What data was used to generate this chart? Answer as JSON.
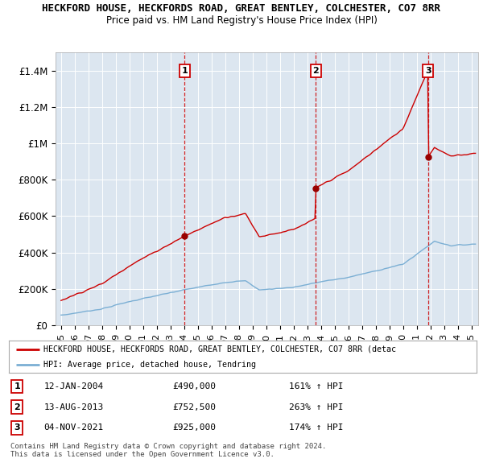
{
  "title": "HECKFORD HOUSE, HECKFORDS ROAD, GREAT BENTLEY, COLCHESTER, CO7 8RR",
  "subtitle": "Price paid vs. HM Land Registry's House Price Index (HPI)",
  "ylim": [
    0,
    1500000
  ],
  "yticks": [
    0,
    200000,
    400000,
    600000,
    800000,
    1000000,
    1200000,
    1400000
  ],
  "ytick_labels": [
    "£0",
    "£200K",
    "£400K",
    "£600K",
    "£800K",
    "£1M",
    "£1.2M",
    "£1.4M"
  ],
  "background_color": "#ffffff",
  "plot_bg_color": "#dce6f0",
  "grid_color": "#ffffff",
  "sale_year_nums": [
    2004.04,
    2013.62,
    2021.84
  ],
  "sale_prices": [
    490000,
    752500,
    925000
  ],
  "sale_labels": [
    "1",
    "2",
    "3"
  ],
  "sale_info": [
    {
      "label": "1",
      "date": "12-JAN-2004",
      "price": "£490,000",
      "hpi": "161% ↑ HPI"
    },
    {
      "label": "2",
      "date": "13-AUG-2013",
      "price": "£752,500",
      "hpi": "263% ↑ HPI"
    },
    {
      "label": "3",
      "date": "04-NOV-2021",
      "price": "£925,000",
      "hpi": "174% ↑ HPI"
    }
  ],
  "red_color": "#cc0000",
  "blue_color": "#7bafd4",
  "dashed_color": "#cc0000",
  "legend_red_label": "HECKFORD HOUSE, HECKFORDS ROAD, GREAT BENTLEY, COLCHESTER, CO7 8RR (detac",
  "legend_blue_label": "HPI: Average price, detached house, Tendring",
  "footer": "Contains HM Land Registry data © Crown copyright and database right 2024.\nThis data is licensed under the Open Government Licence v3.0.",
  "xlim_left": 1994.6,
  "xlim_right": 2025.5,
  "x_start": 1995,
  "x_end": 2025
}
